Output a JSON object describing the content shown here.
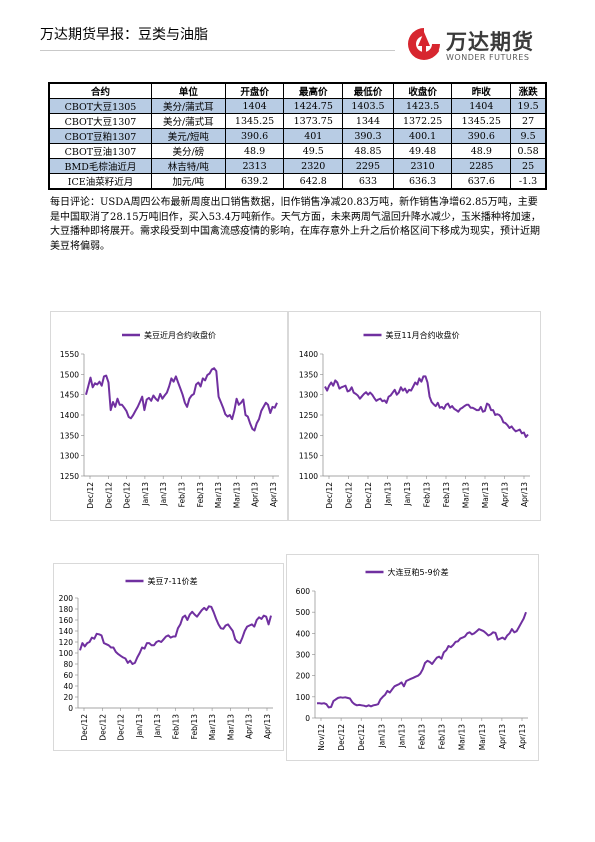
{
  "header": {
    "title": "万达期货早报：豆类与油脂",
    "logo_cn": "万达期货",
    "logo_en": "WONDER FUTURES",
    "brand_color": "#d7262f"
  },
  "table": {
    "headers": [
      "合约",
      "单位",
      "开盘价",
      "最高价",
      "最低价",
      "收盘价",
      "昨收",
      "涨跌"
    ],
    "rows": [
      [
        "CBOT大豆1305",
        "美分/蒲式耳",
        "1404",
        "1424.75",
        "1403.5",
        "1423.5",
        "1404",
        "19.5"
      ],
      [
        "CBOT大豆1307",
        "美分/蒲式耳",
        "1345.25",
        "1373.75",
        "1344",
        "1372.25",
        "1345.25",
        "27"
      ],
      [
        "CBOT豆粕1307",
        "美元/短吨",
        "390.6",
        "401",
        "390.3",
        "400.1",
        "390.6",
        "9.5"
      ],
      [
        "CBOT豆油1307",
        "美分/磅",
        "48.9",
        "49.5",
        "48.85",
        "49.48",
        "48.9",
        "0.58"
      ],
      [
        "BMD毛棕油近月",
        "林吉特/吨",
        "2313",
        "2320",
        "2295",
        "2310",
        "2285",
        "25"
      ],
      [
        "ICE油菜籽近月",
        "加元/吨",
        "639.2",
        "642.8",
        "633",
        "636.3",
        "637.6",
        "-1.3"
      ]
    ],
    "highlight_color": "#b8cce4"
  },
  "comment": "每日评论：USDA周四公布最新周度出口销售数据，旧作销售净减20.83万吨，新作销售净增62.85万吨，主要是中国取消了28.15万吨旧作，买入53.4万吨新作。天气方面，未来两周气温回升降水减少，玉米播种将加速，大豆播种即将展开。需求段受到中国禽流感疫情的影响，在库存意外上升之后价格区间下移成为现实，预计近期美豆将偏弱。",
  "chart_data": [
    {
      "type": "line",
      "title": "美豆近月合约收盘价",
      "series": [
        {
          "name": "美豆近月合约收盘价",
          "color": "#7030a0",
          "values": [
            1450,
            1470,
            1492,
            1468,
            1478,
            1475,
            1482,
            1472,
            1495,
            1497,
            1480,
            1412,
            1432,
            1420,
            1440,
            1425,
            1425,
            1418,
            1410,
            1395,
            1392,
            1400,
            1410,
            1420,
            1432,
            1445,
            1412,
            1438,
            1442,
            1435,
            1448,
            1440,
            1435,
            1452,
            1440,
            1448,
            1455,
            1470,
            1490,
            1482,
            1495,
            1480,
            1465,
            1450,
            1430,
            1420,
            1440,
            1448,
            1452,
            1475,
            1480,
            1470,
            1490,
            1485,
            1498,
            1502,
            1512,
            1515,
            1508,
            1445,
            1432,
            1418,
            1402,
            1396,
            1400,
            1390,
            1410,
            1440,
            1425,
            1430,
            1438,
            1400,
            1396,
            1380,
            1366,
            1362,
            1380,
            1390,
            1410,
            1420,
            1430,
            1425,
            1405,
            1420,
            1418,
            1430
          ]
        }
      ],
      "x_ticks": [
        "Dec/12",
        "Dec/12",
        "Dec/12",
        "Jan/13",
        "Jan/13",
        "Feb/13",
        "Feb/13",
        "Mar/13",
        "Mar/13",
        "Apr/13",
        "Apr/13"
      ],
      "ylim": [
        1250,
        1550
      ],
      "y_ticks": [
        1250,
        1300,
        1350,
        1400,
        1450,
        1500,
        1550
      ],
      "legend": "top"
    },
    {
      "type": "line",
      "title": "美豆11月合约收盘价",
      "series": [
        {
          "name": "美豆11月合约收盘价",
          "color": "#7030a0",
          "values": [
            1320,
            1310,
            1322,
            1330,
            1322,
            1335,
            1330,
            1315,
            1318,
            1320,
            1322,
            1308,
            1310,
            1318,
            1305,
            1302,
            1298,
            1290,
            1296,
            1302,
            1306,
            1300,
            1305,
            1300,
            1292,
            1285,
            1288,
            1290,
            1284,
            1286,
            1280,
            1295,
            1298,
            1305,
            1312,
            1300,
            1305,
            1318,
            1310,
            1315,
            1305,
            1312,
            1310,
            1320,
            1330,
            1325,
            1340,
            1332,
            1345,
            1345,
            1330,
            1295,
            1282,
            1276,
            1272,
            1280,
            1268,
            1270,
            1265,
            1275,
            1278,
            1268,
            1272,
            1265,
            1262,
            1258,
            1265,
            1268,
            1272,
            1275,
            1275,
            1268,
            1268,
            1265,
            1262,
            1262,
            1270,
            1258,
            1260,
            1278,
            1275,
            1262,
            1262,
            1250,
            1252,
            1250,
            1244,
            1232,
            1230,
            1225,
            1218,
            1222,
            1215,
            1210,
            1212,
            1214,
            1205,
            1207,
            1196,
            1202
          ]
        }
      ],
      "x_ticks": [
        "Dec/12",
        "Dec/12",
        "Dec/12",
        "Jan/13",
        "Jan/13",
        "Feb/13",
        "Feb/13",
        "Mar/13",
        "Mar/13",
        "Apr/13",
        "Apr/13"
      ],
      "ylim": [
        1100,
        1400
      ],
      "y_ticks": [
        1100,
        1150,
        1200,
        1250,
        1300,
        1350,
        1400
      ],
      "legend": "top"
    },
    {
      "type": "line",
      "title": "美豆7-11价差",
      "series": [
        {
          "name": "美豆7-11价差",
          "color": "#7030a0",
          "values": [
            105,
            118,
            112,
            118,
            120,
            128,
            126,
            135,
            134,
            132,
            118,
            116,
            114,
            110,
            110,
            102,
            98,
            95,
            92,
            90,
            82,
            86,
            80,
            82,
            92,
            100,
            110,
            108,
            118,
            118,
            114,
            114,
            120,
            122,
            120,
            125,
            130,
            132,
            128,
            130,
            130,
            145,
            152,
            165,
            168,
            160,
            170,
            175,
            170,
            166,
            172,
            178,
            182,
            178,
            185,
            184,
            174,
            162,
            152,
            145,
            144,
            150,
            152,
            146,
            140,
            125,
            120,
            118,
            128,
            140,
            148,
            150,
            152,
            148,
            160,
            165,
            162,
            168,
            166,
            152,
            168
          ]
        }
      ],
      "x_ticks": [
        "Dec/12",
        "Dec/12",
        "Dec/12",
        "Jan/13",
        "Jan/13",
        "Feb/13",
        "Feb/13",
        "Mar/13",
        "Mar/13",
        "Apr/13",
        "Apr/13"
      ],
      "ylim": [
        0,
        200
      ],
      "y_ticks": [
        0,
        20,
        40,
        60,
        80,
        100,
        120,
        140,
        160,
        180,
        200
      ],
      "legend": "top"
    },
    {
      "type": "line",
      "title": "大连豆粕5-9价差",
      "series": [
        {
          "name": "大连豆粕5-9价差",
          "color": "#7030a0",
          "values": [
            70,
            70,
            68,
            70,
            65,
            50,
            52,
            80,
            88,
            95,
            98,
            96,
            98,
            95,
            92,
            75,
            65,
            60,
            62,
            60,
            58,
            55,
            60,
            55,
            60,
            62,
            65,
            88,
            100,
            110,
            128,
            120,
            135,
            150,
            155,
            160,
            168,
            150,
            175,
            180,
            185,
            190,
            195,
            200,
            210,
            230,
            260,
            270,
            265,
            255,
            270,
            285,
            290,
            280,
            310,
            320,
            340,
            335,
            345,
            360,
            362,
            375,
            380,
            385,
            400,
            405,
            395,
            400,
            410,
            420,
            415,
            410,
            400,
            390,
            395,
            405,
            402,
            370,
            375,
            380,
            372,
            390,
            400,
            420,
            405,
            410,
            430,
            450,
            470,
            500
          ]
        }
      ],
      "x_ticks": [
        "Nov/12",
        "Dec/12",
        "Dec/12",
        "Jan/13",
        "Jan/13",
        "Feb/13",
        "Feb/13",
        "Mar/13",
        "Mar/13",
        "Apr/13",
        "Apr/13"
      ],
      "ylim": [
        0,
        600
      ],
      "y_ticks": [
        0,
        100,
        200,
        300,
        400,
        500,
        600
      ],
      "legend": "top"
    }
  ]
}
